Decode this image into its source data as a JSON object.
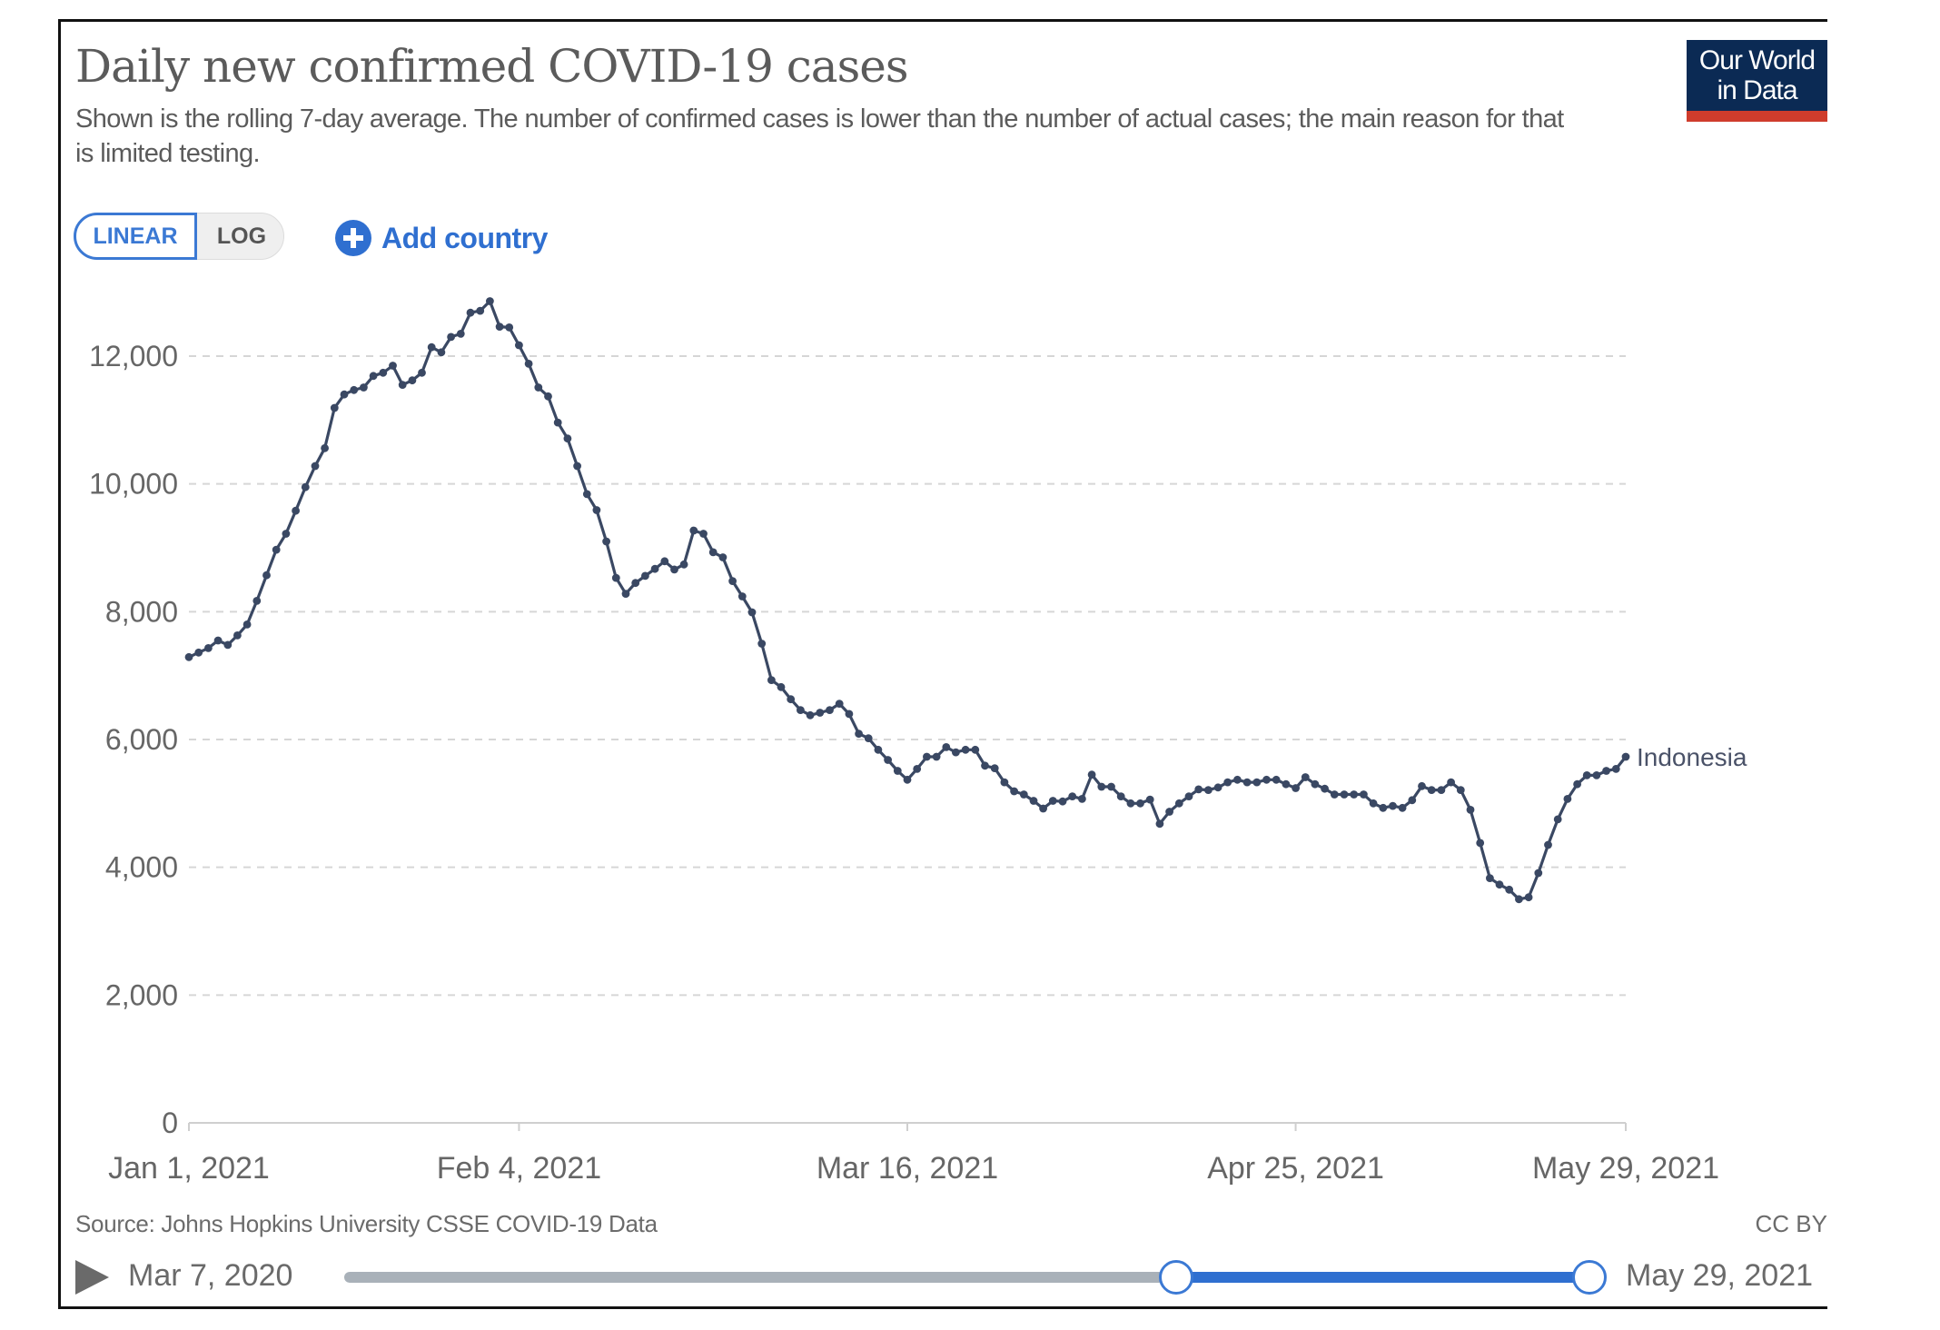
{
  "header": {
    "title": "Daily new confirmed COVID-19 cases",
    "subtitle": "Shown is the rolling 7-day average. The number of confirmed cases is lower than the number of actual cases; the main reason for that is limited testing.",
    "logo_line1": "Our World",
    "logo_line2": "in Data"
  },
  "controls": {
    "linear_label": "LINEAR",
    "log_label": "LOG",
    "add_country_label": "Add country",
    "add_icon": "plus-circle-icon"
  },
  "footer": {
    "source": "Source: Johns Hopkins University CSSE COVID-19 Data",
    "license": "CC BY",
    "play_icon": "play-icon",
    "timeline_start": "Mar 7, 2020",
    "timeline_end": "May 29, 2021",
    "selected_range_fraction": [
      0.668,
      1.0
    ]
  },
  "colors": {
    "line": "#3a4863",
    "accent": "#2f6fd0",
    "logo_bg": "#0b2a54",
    "logo_bar": "#cf3c2c"
  },
  "chart_data": {
    "type": "line",
    "title": "Daily new confirmed COVID-19 cases",
    "xlabel": "",
    "ylabel": "",
    "ylim": [
      0,
      12000
    ],
    "yticks": [
      0,
      2000,
      4000,
      6000,
      8000,
      10000,
      12000
    ],
    "ytick_labels": [
      "0",
      "2,000",
      "4,000",
      "6,000",
      "8,000",
      "10,000",
      "12,000"
    ],
    "x_start": "Jan 1, 2021",
    "x_end": "May 29, 2021",
    "xticks_day": [
      0,
      34,
      74,
      114,
      148
    ],
    "xtick_labels": [
      "Jan 1, 2021",
      "Feb 4, 2021",
      "Mar 16, 2021",
      "Apr 25, 2021",
      "May 29, 2021"
    ],
    "grid": true,
    "series": [
      {
        "name": "Indonesia",
        "x_unit": "days since Jan 1, 2021",
        "values": [
          7290,
          7360,
          7430,
          7550,
          7480,
          7630,
          7800,
          8170,
          8570,
          8970,
          9220,
          9580,
          9950,
          10280,
          10560,
          11190,
          11400,
          11470,
          11510,
          11690,
          11740,
          11850,
          11550,
          11620,
          11740,
          12140,
          12060,
          12300,
          12350,
          12680,
          12710,
          12860,
          12460,
          12450,
          12170,
          11880,
          11510,
          11370,
          10960,
          10710,
          10280,
          9840,
          9590,
          9100,
          8530,
          8280,
          8450,
          8560,
          8670,
          8790,
          8660,
          8740,
          9270,
          9220,
          8930,
          8850,
          8480,
          8240,
          7990,
          7500,
          6930,
          6820,
          6630,
          6460,
          6380,
          6420,
          6460,
          6560,
          6400,
          6090,
          6020,
          5840,
          5680,
          5510,
          5370,
          5540,
          5730,
          5730,
          5880,
          5800,
          5840,
          5840,
          5590,
          5550,
          5330,
          5190,
          5140,
          5040,
          4920,
          5040,
          5030,
          5110,
          5070,
          5450,
          5260,
          5260,
          5110,
          5000,
          5000,
          5060,
          4680,
          4870,
          5000,
          5110,
          5220,
          5210,
          5250,
          5330,
          5370,
          5330,
          5330,
          5370,
          5370,
          5300,
          5240,
          5410,
          5300,
          5230,
          5140,
          5140,
          5140,
          5140,
          5000,
          4930,
          4960,
          4930,
          5050,
          5270,
          5210,
          5210,
          5330,
          5210,
          4900,
          4380,
          3830,
          3730,
          3650,
          3500,
          3530,
          3910,
          4350,
          4750,
          5070,
          5300,
          5440,
          5440,
          5510,
          5540,
          5730
        ]
      }
    ]
  }
}
